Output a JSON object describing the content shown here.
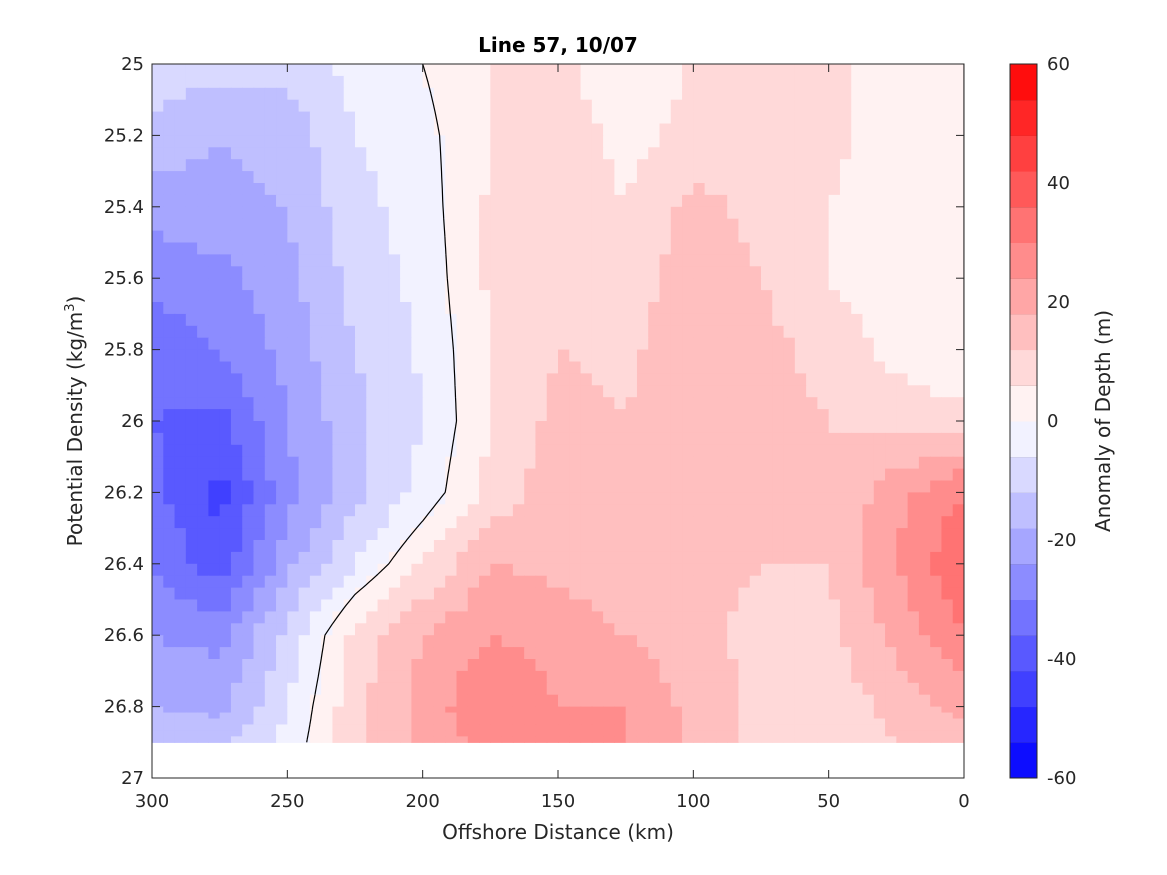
{
  "chart_data": {
    "type": "heatmap",
    "title": "Line 57, 10/07",
    "xlabel": "Offshore Distance (km)",
    "ylabel_main": "Potential Density (kg/m",
    "ylabel_sup": "3",
    "ylabel_close": ")",
    "colorbar_label": "Anomaly of Depth (m)",
    "xlim": [
      300,
      0
    ],
    "ylim": [
      25,
      27
    ],
    "x_ticks": [
      "300",
      "250",
      "200",
      "150",
      "100",
      "50",
      "0"
    ],
    "y_ticks": [
      "25",
      "25.2",
      "25.4",
      "25.6",
      "25.8",
      "26",
      "26.2",
      "26.4",
      "26.6",
      "26.8",
      "27"
    ],
    "colorbar_range": [
      -60,
      60
    ],
    "colorbar_ticks": [
      "60",
      "40",
      "20",
      "0",
      "-20",
      "-40",
      "-60"
    ],
    "colorbar_levels": 20,
    "zero_contour_color": "#000000",
    "grid": false,
    "colors": {
      "positive_max": "#ff0000",
      "negative_max": "#0000ff",
      "zero": "#ffffff"
    },
    "anomaly_grid": {
      "x_km": [
        300,
        275,
        250,
        225,
        200,
        175,
        150,
        125,
        100,
        75,
        50,
        25,
        0
      ],
      "density": [
        25.0,
        25.2,
        25.4,
        25.6,
        25.8,
        26.0,
        26.2,
        26.4,
        26.6,
        26.8,
        26.9
      ],
      "values": [
        [
          -8,
          -10,
          -9,
          -4,
          0,
          6,
          8,
          0,
          7,
          9,
          8,
          2,
          0
        ],
        [
          -14,
          -18,
          -16,
          -6,
          -2,
          6,
          10,
          4,
          8,
          10,
          8,
          2,
          0
        ],
        [
          -22,
          -20,
          -18,
          -8,
          -3,
          7,
          10,
          6,
          14,
          10,
          6,
          1,
          0
        ],
        [
          -28,
          -26,
          -20,
          -10,
          -4,
          7,
          12,
          8,
          16,
          12,
          6,
          2,
          0
        ],
        [
          -34,
          -30,
          -22,
          -12,
          -5,
          6,
          12,
          10,
          18,
          14,
          10,
          4,
          0
        ],
        [
          -36,
          -38,
          -24,
          -14,
          -6,
          6,
          14,
          12,
          18,
          14,
          12,
          10,
          8
        ],
        [
          -34,
          -44,
          -26,
          -14,
          -4,
          8,
          16,
          12,
          16,
          14,
          12,
          22,
          30
        ],
        [
          -30,
          -40,
          -20,
          -6,
          6,
          18,
          16,
          14,
          14,
          12,
          12,
          24,
          36
        ],
        [
          -24,
          -26,
          -10,
          8,
          18,
          24,
          22,
          18,
          14,
          10,
          10,
          20,
          30
        ],
        [
          -18,
          -20,
          -6,
          10,
          20,
          30,
          24,
          24,
          16,
          10,
          8,
          14,
          20
        ],
        [
          -12,
          -14,
          -4,
          10,
          20,
          26,
          24,
          24,
          16,
          10,
          8,
          12,
          16
        ]
      ]
    }
  }
}
